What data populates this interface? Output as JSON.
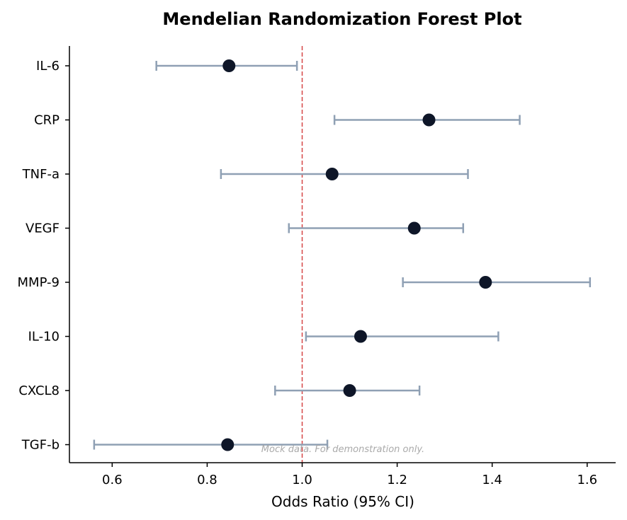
{
  "chart_data": {
    "type": "scatter",
    "title": "Mendelian Randomization Forest Plot",
    "xlabel": "Odds Ratio (95% CI)",
    "ylabel": "",
    "xlim": [
      0.51,
      1.66
    ],
    "xticks": [
      "0.6",
      "0.8",
      "1.0",
      "1.2",
      "1.4",
      "1.6"
    ],
    "reference_line": 1.0,
    "grid": false,
    "categories": [
      "IL-6",
      "CRP",
      "TNF-a",
      "VEGF",
      "MMP-9",
      "IL-10",
      "CXCL8",
      "TGF-b"
    ],
    "estimates": [
      0.846,
      1.267,
      1.063,
      1.236,
      1.386,
      1.123,
      1.1,
      0.843
    ],
    "ci_lower": [
      0.693,
      1.068,
      0.829,
      0.972,
      1.212,
      1.008,
      0.943,
      0.562
    ],
    "ci_upper": [
      0.989,
      1.458,
      1.349,
      1.339,
      1.606,
      1.413,
      1.247,
      1.053
    ],
    "annotation": "Mock data. For demonstration only.",
    "colors": {
      "point": "#0e1628",
      "ci": "#8fa0b4",
      "reference": "#d64545",
      "axis": "#000000",
      "annotation": "#aaaaaa"
    }
  }
}
